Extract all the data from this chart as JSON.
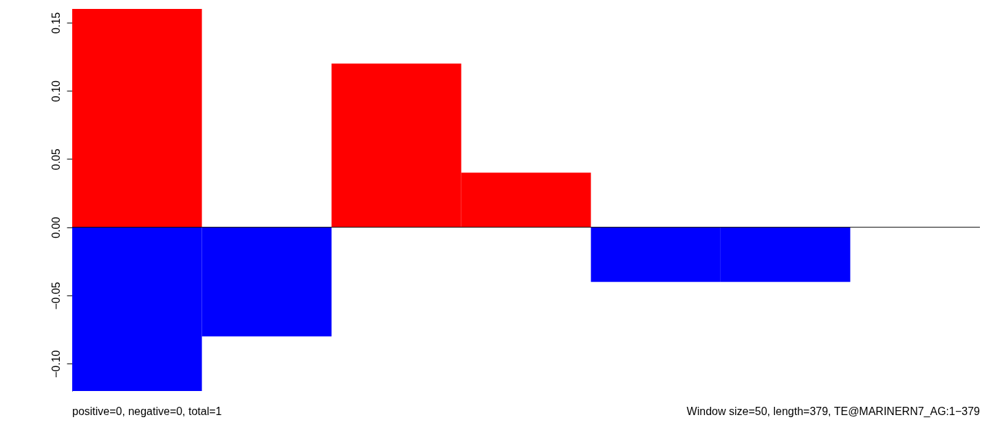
{
  "chart_data": {
    "type": "bar",
    "categories": [
      null,
      null,
      null,
      null,
      null,
      null,
      null
    ],
    "series": [
      {
        "color": "#ff0000",
        "values": [
          0.16,
          0,
          0.12,
          0.04,
          0,
          0,
          0
        ]
      },
      {
        "color": "#0000ff",
        "values": [
          -0.12,
          -0.08,
          0,
          0,
          -0.04,
          -0.04,
          0
        ]
      }
    ],
    "ylim": [
      -0.12,
      0.16
    ],
    "yticks": [
      {
        "value": -0.1,
        "label": "−0.10"
      },
      {
        "value": -0.05,
        "label": "−0.05"
      },
      {
        "value": 0,
        "label": "0.00"
      },
      {
        "value": 0.05,
        "label": "0.05"
      },
      {
        "value": 0.1,
        "label": "0.10"
      },
      {
        "value": 0.15,
        "label": "0.15"
      }
    ],
    "tick_labels": "y",
    "grid": false,
    "ref_lines": [
      {
        "axis": "y",
        "value": 0,
        "color": "#000000"
      }
    ],
    "annotations": [
      "positive=0, negative=0, total=1",
      "Window size=50, length=379, TE@MARINERN7_AG:1−379"
    ]
  }
}
